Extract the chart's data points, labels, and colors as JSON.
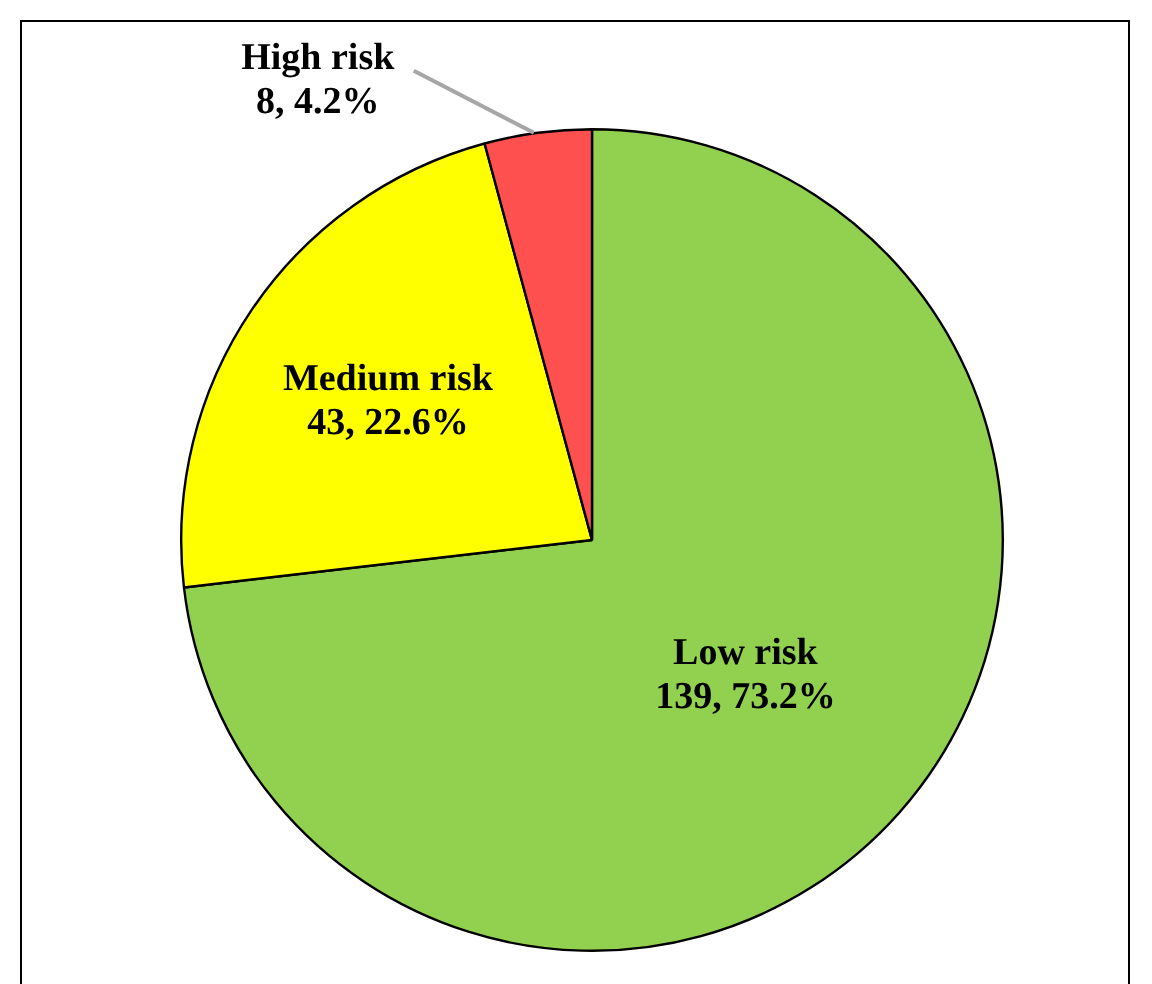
{
  "chart_data": {
    "type": "pie",
    "categories": [
      "Low risk",
      "Medium risk",
      "High risk"
    ],
    "values": [
      139,
      43,
      8
    ],
    "value_labels": [
      "139, 73.2%",
      "43, 22.6%",
      "8, 4.2%"
    ],
    "colors": [
      "#92d050",
      "#ffff00",
      "#ff5050"
    ],
    "legend": false
  }
}
